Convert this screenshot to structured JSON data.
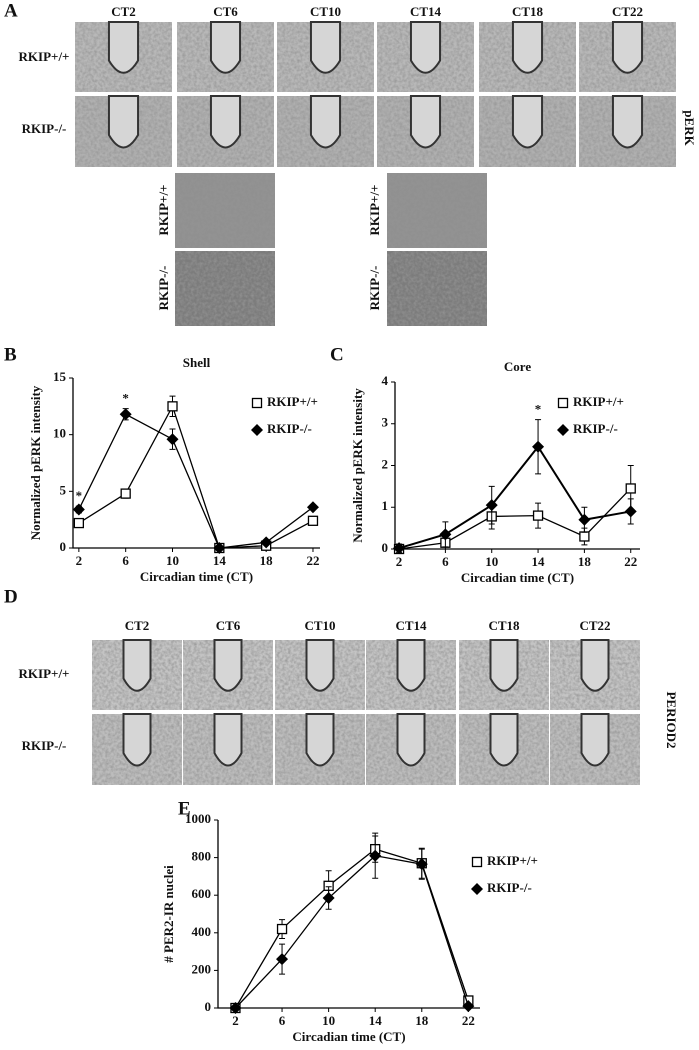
{
  "figure": {
    "panel_a": {
      "label": "A",
      "columns": [
        "CT2",
        "CT6",
        "CT10",
        "CT14",
        "CT18",
        "CT22"
      ],
      "rows": [
        "RKIP+/+",
        "RKIP-/-"
      ],
      "marker": "pERK"
    },
    "panel_d": {
      "label": "D",
      "columns": [
        "CT2",
        "CT6",
        "CT10",
        "CT14",
        "CT18",
        "CT22"
      ],
      "rows": [
        "RKIP+/+",
        "RKIP-/-"
      ],
      "marker": "PERIOD2"
    }
  },
  "chart_data": [
    {
      "type": "line",
      "panel_label": "B",
      "title": "Shell",
      "xlabel": "Circadian time (CT)",
      "ylabel": "Normalized pERK intensity",
      "x": [
        2,
        6,
        10,
        14,
        18,
        22
      ],
      "xlim": [
        1.5,
        22.6
      ],
      "xticks": [
        2,
        6,
        10,
        14,
        18,
        22
      ],
      "ylim": [
        0,
        15
      ],
      "yticks": [
        0,
        5,
        10,
        15
      ],
      "series": [
        {
          "name": "RKIP+/+",
          "color": "#000000",
          "marker": "square",
          "values": [
            2.2,
            4.8,
            12.5,
            0,
            0.2,
            2.4
          ],
          "errors": [
            0.3,
            0.4,
            0.9,
            0,
            0.1,
            0.3
          ]
        },
        {
          "name": "RKIP-/-",
          "color": "#000000",
          "marker": "diamond",
          "values": [
            3.4,
            11.8,
            9.6,
            0,
            0.5,
            3.6
          ],
          "errors": [
            0.3,
            0.5,
            0.9,
            0,
            0.1,
            0.2
          ]
        }
      ],
      "annotations": [
        {
          "text": "*",
          "x": 2
        },
        {
          "text": "*",
          "x": 6
        }
      ]
    },
    {
      "type": "line",
      "panel_label": "C",
      "title": "Core",
      "xlabel": "Circadian time (CT)",
      "ylabel": "Normalized pERK intensity",
      "x": [
        2,
        6,
        10,
        14,
        18,
        22
      ],
      "xlim": [
        1.65,
        22.8
      ],
      "xticks": [
        2,
        6,
        10,
        14,
        18,
        22
      ],
      "ylim": [
        0,
        4
      ],
      "yticks": [
        0,
        1,
        2,
        3,
        4
      ],
      "series": [
        {
          "name": "RKIP+/+",
          "color": "#000000",
          "marker": "square",
          "values": [
            0,
            0.15,
            0.78,
            0.8,
            0.3,
            1.45
          ],
          "errors": [
            0.1,
            0.15,
            0.3,
            0.3,
            0.2,
            0.55
          ]
        },
        {
          "name": "RKIP-/-",
          "color": "#000000",
          "marker": "diamond",
          "values": [
            0.02,
            0.35,
            1.05,
            2.45,
            0.7,
            0.9
          ],
          "errors": [
            0.1,
            0.3,
            0.45,
            0.65,
            0.3,
            0.3
          ]
        }
      ],
      "annotations": [
        {
          "text": "*",
          "x": 14
        }
      ]
    },
    {
      "type": "line",
      "panel_label": "E",
      "xlabel": "Circadian time (CT)",
      "ylabel": "# PER2-IR nuclei",
      "x": [
        2,
        6,
        10,
        14,
        18,
        22
      ],
      "xlim": [
        0.5,
        23
      ],
      "xticks": [
        2,
        6,
        10,
        14,
        18,
        22
      ],
      "ylim": [
        0,
        1000
      ],
      "yticks": [
        0,
        200,
        400,
        600,
        800,
        1000
      ],
      "series": [
        {
          "name": "RKIP+/+",
          "color": "#000000",
          "marker": "square",
          "values": [
            0,
            420,
            650,
            845,
            770,
            40
          ],
          "errors": [
            10,
            50,
            80,
            70,
            80,
            10
          ]
        },
        {
          "name": "RKIP-/-",
          "color": "#000000",
          "marker": "diamond",
          "values": [
            0,
            260,
            585,
            810,
            765,
            10
          ],
          "errors": [
            10,
            80,
            60,
            120,
            80,
            10
          ]
        }
      ],
      "annotations": []
    }
  ]
}
